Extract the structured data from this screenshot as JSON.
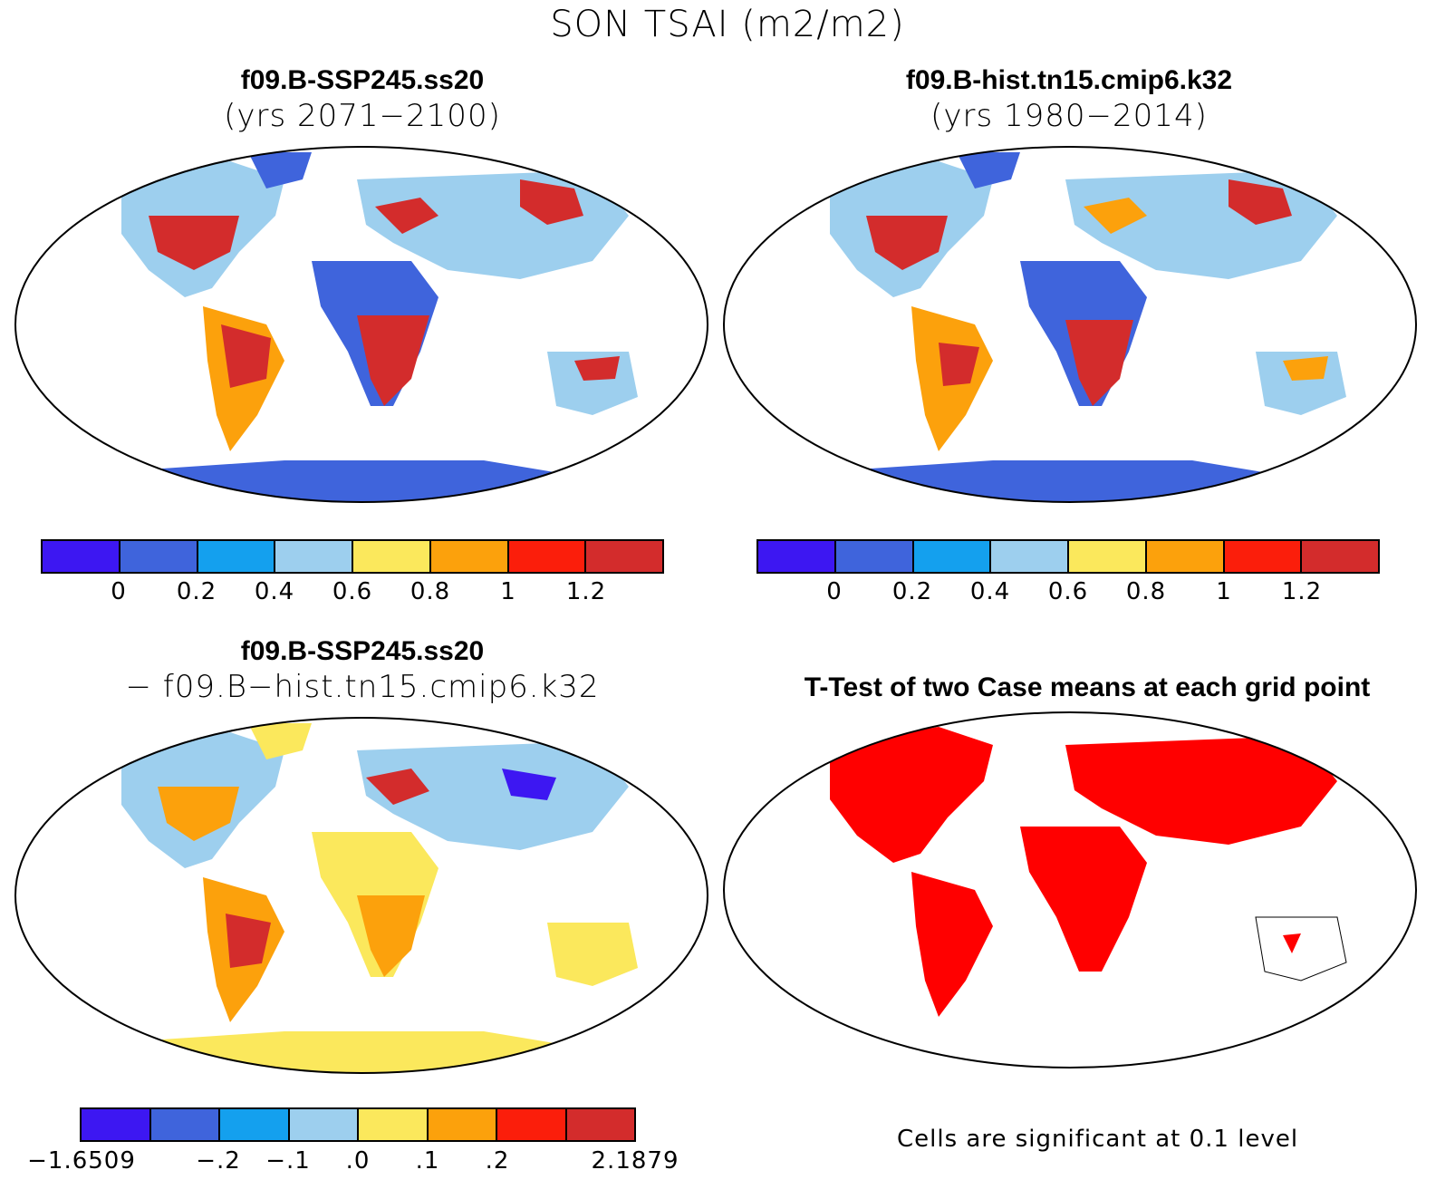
{
  "main_title": "SON TSAI (m2/m2)",
  "colors": {
    "levels": [
      "#3d17f2",
      "#3f64dc",
      "#14a0ee",
      "#9dcfee",
      "#fbe85c",
      "#fca10c",
      "#fb1e0b",
      "#d32c2c"
    ],
    "land_low": "#3f64dc",
    "land_mid": "#9dcfee",
    "land_hi": "#d32c2c",
    "sig_red": "#ff0000",
    "ocean": "#ffffff"
  },
  "panels": {
    "top_left": {
      "title": "f09.B-SSP245.ss20",
      "subtitle": "(yrs 2071−2100)",
      "colorbar_labels": [
        "0",
        "0.2",
        "0.4",
        "0.6",
        "0.8",
        "1",
        "1.2"
      ]
    },
    "top_right": {
      "title": "f09.B-hist.tn15.cmip6.k32",
      "subtitle": "(yrs 1980−2014)",
      "colorbar_labels": [
        "0",
        "0.2",
        "0.4",
        "0.6",
        "0.8",
        "1",
        "1.2"
      ]
    },
    "bottom_left": {
      "title": "f09.B-SSP245.ss20",
      "subtitle": "− f09.B−hist.tn15.cmip6.k32",
      "colorbar_labels": [
        "−1.6509",
        "−.2",
        "−.1",
        ".0",
        ".1",
        ".2",
        "2.1879"
      ]
    },
    "bottom_right": {
      "title": "T-Test of two Case means at each grid point",
      "note": "Cells are significant at 0.1 level"
    }
  }
}
